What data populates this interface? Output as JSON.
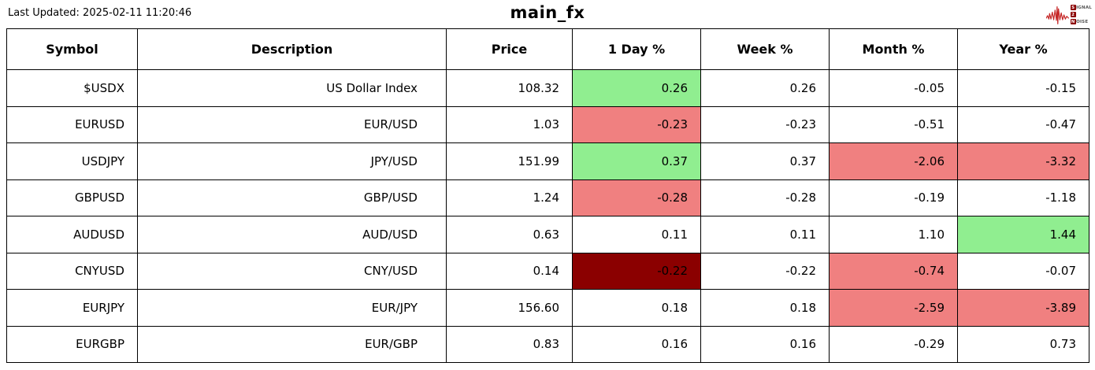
{
  "header": {
    "last_updated": "Last Updated: 2025-02-11 11:20:46",
    "title": "main_fx",
    "logo": {
      "icon": "red-waveform-icon",
      "line1_prefix": "S",
      "line1_rest": "IGNAL",
      "line2_prefix": "2",
      "line2_rest": "",
      "line3_prefix": "N",
      "line3_rest": "OISE",
      "badge_color": "#8B0000",
      "waveform_color": "#C62828"
    }
  },
  "colors": {
    "positive_bg": "#90EE90",
    "negative_bg": "#F08080",
    "strong_negative_bg": "#8B0000",
    "border": "#000000",
    "text": "#000000",
    "background": "#FFFFFF"
  },
  "table": {
    "columns": [
      "Symbol",
      "Description",
      "Price",
      "1 Day %",
      "Week %",
      "Month %",
      "Year %"
    ],
    "rows": [
      {
        "symbol": "$USDX",
        "description": "US Dollar Index",
        "price": "108.32",
        "day": "0.26",
        "week": "0.26",
        "month": "-0.05",
        "year": "-0.15",
        "highlights": {
          "day": "positive"
        }
      },
      {
        "symbol": "EURUSD",
        "description": "EUR/USD",
        "price": "1.03",
        "day": "-0.23",
        "week": "-0.23",
        "month": "-0.51",
        "year": "-0.47",
        "highlights": {
          "day": "negative"
        }
      },
      {
        "symbol": "USDJPY",
        "description": "JPY/USD",
        "price": "151.99",
        "day": "0.37",
        "week": "0.37",
        "month": "-2.06",
        "year": "-3.32",
        "highlights": {
          "day": "positive",
          "month": "negative",
          "year": "negative"
        }
      },
      {
        "symbol": "GBPUSD",
        "description": "GBP/USD",
        "price": "1.24",
        "day": "-0.28",
        "week": "-0.28",
        "month": "-0.19",
        "year": "-1.18",
        "highlights": {
          "day": "negative"
        }
      },
      {
        "symbol": "AUDUSD",
        "description": "AUD/USD",
        "price": "0.63",
        "day": "0.11",
        "week": "0.11",
        "month": "1.10",
        "year": "1.44",
        "highlights": {
          "year": "positive"
        }
      },
      {
        "symbol": "CNYUSD",
        "description": "CNY/USD",
        "price": "0.14",
        "day": "-0.22",
        "week": "-0.22",
        "month": "-0.74",
        "year": "-0.07",
        "highlights": {
          "day": "strong_negative",
          "month": "negative"
        }
      },
      {
        "symbol": "EURJPY",
        "description": "EUR/JPY",
        "price": "156.60",
        "day": "0.18",
        "week": "0.18",
        "month": "-2.59",
        "year": "-3.89",
        "highlights": {
          "month": "negative",
          "year": "negative"
        }
      },
      {
        "symbol": "EURGBP",
        "description": "EUR/GBP",
        "price": "0.83",
        "day": "0.16",
        "week": "0.16",
        "month": "-0.29",
        "year": "0.73",
        "highlights": {}
      }
    ]
  }
}
